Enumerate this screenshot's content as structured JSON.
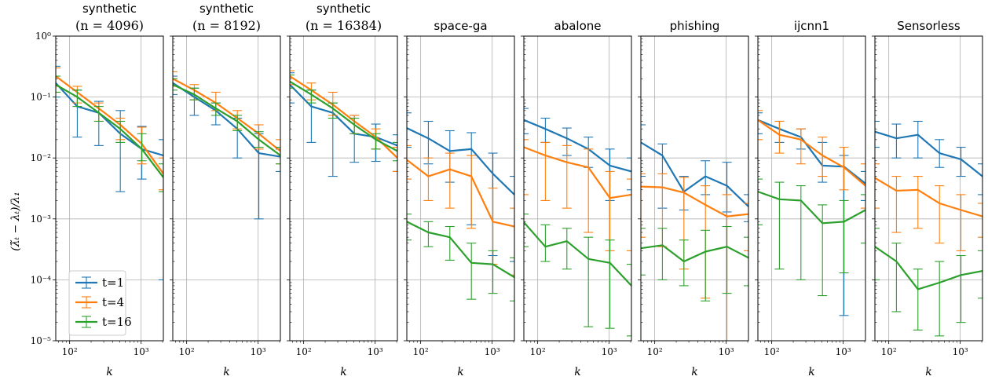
{
  "figure": {
    "ylabel": "(λ̃ₜ − λₜ)/λ₁",
    "xlabel": "k"
  },
  "chart_data": {
    "type": "line",
    "xscale": "log",
    "yscale": "log",
    "xlim": [
      64,
      2048
    ],
    "ylim": [
      1e-05,
      1
    ],
    "x": [
      64,
      128,
      256,
      512,
      1024,
      2048
    ],
    "xticks": [
      100,
      1000
    ],
    "xticklabels": [
      "10²",
      "10³"
    ],
    "yticks": [
      1e-05,
      0.0001,
      0.001,
      0.01,
      0.1,
      1
    ],
    "yticklabels": [
      "10⁻⁵",
      "10⁻⁴",
      "10⁻³",
      "10⁻²",
      "10⁻¹",
      "10⁰"
    ],
    "grid": true,
    "legend": {
      "location": "lower-left of first panel",
      "entries": [
        "t=1",
        "t=4",
        "t=16"
      ]
    },
    "colors": {
      "t1": "#1f77b4",
      "t4": "#ff7f0e",
      "t16": "#2ca02c"
    },
    "panels": [
      {
        "title": "synthetic",
        "subtitle": "(n = 4096)",
        "series": [
          {
            "name": "t=1",
            "values": [
              0.17,
              0.07,
              0.055,
              0.025,
              0.014,
              0.011
            ],
            "err_low": [
              0.1,
              0.022,
              0.016,
              0.0028,
              0.0045,
              0.0001
            ],
            "err_high": [
              0.32,
              0.13,
              0.085,
              0.06,
              0.033,
              0.02
            ]
          },
          {
            "name": "t=4",
            "values": [
              0.22,
              0.12,
              0.065,
              0.035,
              0.017,
              0.0055
            ],
            "err_low": [
              0.15,
              0.08,
              0.04,
              0.02,
              0.008,
              0.003
            ],
            "err_high": [
              0.3,
              0.15,
              0.08,
              0.045,
              0.032,
              0.01
            ]
          },
          {
            "name": "t=16",
            "values": [
              0.16,
              0.1,
              0.055,
              0.03,
              0.014,
              0.0048
            ],
            "err_low": [
              0.12,
              0.07,
              0.04,
              0.018,
              0.009,
              0.0028
            ],
            "err_high": [
              0.22,
              0.13,
              0.07,
              0.04,
              0.025,
              0.008
            ]
          }
        ]
      },
      {
        "title": "synthetic",
        "subtitle": "(n = 8192)",
        "series": [
          {
            "name": "t=1",
            "values": [
              0.17,
              0.1,
              0.06,
              0.03,
              0.012,
              0.0105
            ],
            "err_low": [
              0.11,
              0.05,
              0.035,
              0.01,
              0.001,
              0.006
            ],
            "err_high": [
              0.22,
              0.14,
              0.08,
              0.045,
              0.025,
              0.014
            ]
          },
          {
            "name": "t=4",
            "values": [
              0.2,
              0.13,
              0.08,
              0.045,
              0.025,
              0.013
            ],
            "err_low": [
              0.15,
              0.09,
              0.06,
              0.03,
              0.014,
              0.008
            ],
            "err_high": [
              0.26,
              0.16,
              0.12,
              0.06,
              0.035,
              0.02
            ]
          },
          {
            "name": "t=16",
            "values": [
              0.16,
              0.11,
              0.065,
              0.04,
              0.02,
              0.011
            ],
            "err_low": [
              0.13,
              0.09,
              0.05,
              0.028,
              0.015,
              0.008
            ],
            "err_high": [
              0.2,
              0.14,
              0.08,
              0.05,
              0.027,
              0.015
            ]
          }
        ]
      },
      {
        "title": "synthetic",
        "subtitle": "(n = 16384)",
        "series": [
          {
            "name": "t=1",
            "values": [
              0.16,
              0.07,
              0.055,
              0.025,
              0.022,
              0.016
            ],
            "err_low": [
              0.08,
              0.018,
              0.005,
              0.0085,
              0.0088,
              0.006
            ],
            "err_high": [
              0.25,
              0.13,
              0.08,
              0.05,
              0.036,
              0.024
            ]
          },
          {
            "name": "t=4",
            "values": [
              0.22,
              0.13,
              0.075,
              0.04,
              0.022,
              0.01
            ],
            "err_low": [
              0.16,
              0.09,
              0.05,
              0.025,
              0.014,
              0.006
            ],
            "err_high": [
              0.27,
              0.17,
              0.12,
              0.05,
              0.03,
              0.015
            ]
          },
          {
            "name": "t=16",
            "values": [
              0.18,
              0.11,
              0.065,
              0.035,
              0.02,
              0.013
            ],
            "err_low": [
              0.14,
              0.08,
              0.045,
              0.025,
              0.014,
              0.009
            ],
            "err_high": [
              0.23,
              0.13,
              0.08,
              0.045,
              0.025,
              0.018
            ]
          }
        ]
      },
      {
        "title": "space-ga",
        "subtitle": "",
        "series": [
          {
            "name": "t=1",
            "values": [
              0.031,
              0.021,
              0.013,
              0.014,
              0.0055,
              0.0025
            ],
            "err_low": [
              0.015,
              0.008,
              0.004,
              0.0008,
              0.00025,
              0.0002
            ],
            "err_high": [
              0.055,
              0.04,
              0.028,
              0.026,
              0.012,
              0.005
            ]
          },
          {
            "name": "t=4",
            "values": [
              0.0093,
              0.005,
              0.0065,
              0.005,
              0.0009,
              0.00075
            ],
            "err_low": [
              0.0045,
              0.002,
              0.0015,
              0.0007,
              0.00018,
              0.00012
            ],
            "err_high": [
              0.016,
              0.01,
              0.012,
              0.011,
              0.0032,
              0.0015
            ]
          },
          {
            "name": "t=16",
            "values": [
              0.0009,
              0.0006,
              0.0005,
              0.00019,
              0.00018,
              0.00011
            ],
            "err_low": [
              0.00045,
              0.00035,
              0.00021,
              4.8e-05,
              6e-05,
              4.5e-05
            ],
            "err_high": [
              0.0012,
              0.0009,
              0.00075,
              0.0004,
              0.0003,
              0.00023
            ]
          }
        ]
      },
      {
        "title": "abalone",
        "subtitle": "",
        "series": [
          {
            "name": "t=1",
            "values": [
              0.042,
              0.03,
              0.021,
              0.014,
              0.0075,
              0.006
            ],
            "err_low": [
              0.025,
              0.018,
              0.011,
              0.007,
              0.002,
              0.003
            ],
            "err_high": [
              0.065,
              0.045,
              0.031,
              0.022,
              0.014,
              0.01
            ]
          },
          {
            "name": "t=4",
            "values": [
              0.015,
              0.011,
              0.0085,
              0.007,
              0.0022,
              0.0025
            ],
            "err_low": [
              0.0025,
              0.002,
              0.0015,
              0.0006,
              0.0003,
              0.0003
            ],
            "err_high": [
              0.02,
              0.018,
              0.016,
              0.014,
              0.006,
              0.0045
            ]
          },
          {
            "name": "t=16",
            "values": [
              0.00088,
              0.00035,
              0.00043,
              0.00022,
              0.00019,
              8e-05
            ],
            "err_low": [
              0.00035,
              0.0002,
              0.00015,
              1.7e-05,
              1.6e-05,
              1.2e-05
            ],
            "err_high": [
              0.0012,
              0.0008,
              0.0007,
              0.0005,
              0.00045,
              0.00018
            ]
          }
        ]
      },
      {
        "title": "phishing",
        "subtitle": "",
        "series": [
          {
            "name": "t=1",
            "values": [
              0.018,
              0.011,
              0.0028,
              0.005,
              0.0035,
              0.0016
            ],
            "err_low": [
              0.005,
              0.0015,
              0.0014,
              0.0025,
              0.0013,
              0.0009
            ],
            "err_high": [
              0.035,
              0.017,
              0.005,
              0.009,
              0.0085,
              0.0025
            ]
          },
          {
            "name": "t=4",
            "values": [
              0.0034,
              0.0033,
              0.0027,
              0.0017,
              0.0011,
              0.0012
            ],
            "err_low": [
              0.0005,
              0.00035,
              0.00015,
              5e-05,
              5e-06,
              0.0003
            ],
            "err_high": [
              0.0055,
              0.0055,
              0.0048,
              0.0035,
              0.0025,
              0.0018
            ]
          },
          {
            "name": "t=16",
            "values": [
              0.00033,
              0.00037,
              0.0002,
              0.00029,
              0.00035,
              0.00023
            ],
            "err_low": [
              0.00012,
              0.0001,
              8e-05,
              4.5e-05,
              6e-05,
              8e-05
            ],
            "err_high": [
              0.0007,
              0.0007,
              0.00045,
              0.00065,
              0.00075,
              0.0005
            ]
          }
        ]
      },
      {
        "title": "ijcnn1",
        "subtitle": "",
        "series": [
          {
            "name": "t=1",
            "values": [
              0.042,
              0.03,
              0.022,
              0.0075,
              0.0072,
              0.0038
            ],
            "err_low": [
              0.025,
              0.018,
              0.014,
              0.004,
              2.6e-05,
              0.002
            ],
            "err_high": [
              0.055,
              0.04,
              0.03,
              0.018,
              0.011,
              0.006
            ]
          },
          {
            "name": "t=4",
            "values": [
              0.042,
              0.024,
              0.02,
              0.011,
              0.007,
              0.0035
            ],
            "err_low": [
              0.02,
              0.012,
              0.008,
              0.005,
              0.003,
              0.0015
            ],
            "err_high": [
              0.06,
              0.04,
              0.03,
              0.022,
              0.015,
              0.008
            ]
          },
          {
            "name": "t=16",
            "values": [
              0.0028,
              0.0021,
              0.002,
              0.00085,
              0.0009,
              0.0014
            ],
            "err_low": [
              0.0008,
              0.00015,
              0.0001,
              5.5e-05,
              0.00013,
              0.0004
            ],
            "err_high": [
              0.0045,
              0.004,
              0.0035,
              0.0017,
              0.002,
              0.0025
            ]
          }
        ]
      },
      {
        "title": "Sensorless",
        "subtitle": "",
        "series": [
          {
            "name": "t=1",
            "values": [
              0.027,
              0.021,
              0.024,
              0.012,
              0.0095,
              0.005
            ],
            "err_low": [
              0.015,
              0.01,
              0.01,
              0.007,
              0.005,
              0.0025
            ],
            "err_high": [
              0.04,
              0.036,
              0.04,
              0.02,
              0.015,
              0.008
            ]
          },
          {
            "name": "t=4",
            "values": [
              0.0047,
              0.0029,
              0.003,
              0.0018,
              0.0014,
              0.0011
            ],
            "err_low": [
              0.0015,
              0.0006,
              0.0007,
              0.0004,
              0.0003,
              0.0005
            ],
            "err_high": [
              0.008,
              0.005,
              0.005,
              0.0035,
              0.0025,
              0.0018
            ]
          },
          {
            "name": "t=16",
            "values": [
              0.00035,
              0.0002,
              7e-05,
              9e-05,
              0.00012,
              0.00014
            ],
            "err_low": [
              0.0001,
              3e-05,
              1.5e-05,
              1.2e-05,
              2e-05,
              5e-05
            ],
            "err_high": [
              0.0007,
              0.0004,
              0.00015,
              0.0002,
              0.00025,
              0.0003
            ]
          }
        ]
      }
    ]
  }
}
